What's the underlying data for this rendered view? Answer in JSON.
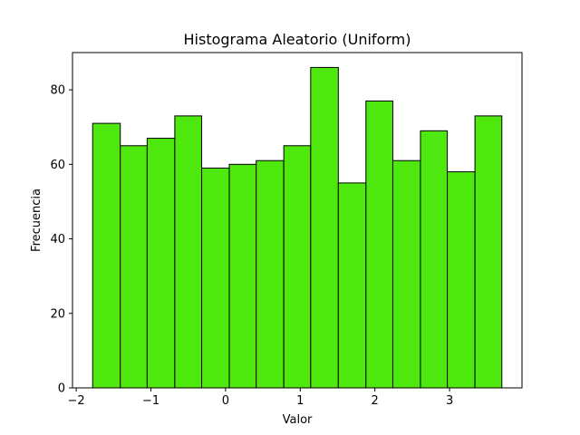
{
  "chart_data": {
    "type": "bar",
    "title": "Histograma Aleatorio (Uniform)",
    "xlabel": "Valor",
    "ylabel": "Frecuencia",
    "bin_edges": [
      -1.78,
      -1.41,
      -1.05,
      -0.68,
      -0.32,
      0.05,
      0.41,
      0.78,
      1.14,
      1.51,
      1.88,
      2.24,
      2.61,
      2.97,
      3.34,
      3.7
    ],
    "values": [
      71,
      65,
      67,
      73,
      59,
      60,
      61,
      65,
      86,
      55,
      77,
      61,
      69,
      58,
      73
    ],
    "xlim": [
      -2.05,
      3.97
    ],
    "ylim": [
      0,
      90
    ],
    "xticks": [
      -2,
      -1,
      0,
      1,
      2,
      3
    ],
    "yticks": [
      0,
      20,
      40,
      60,
      80
    ],
    "xtick_labels": [
      "−2",
      "−1",
      "0",
      "1",
      "2",
      "3"
    ],
    "ytick_labels": [
      "0",
      "20",
      "40",
      "60",
      "80"
    ],
    "bar_color": "#4ee80e",
    "edge_color": "#000000",
    "grid": false
  }
}
